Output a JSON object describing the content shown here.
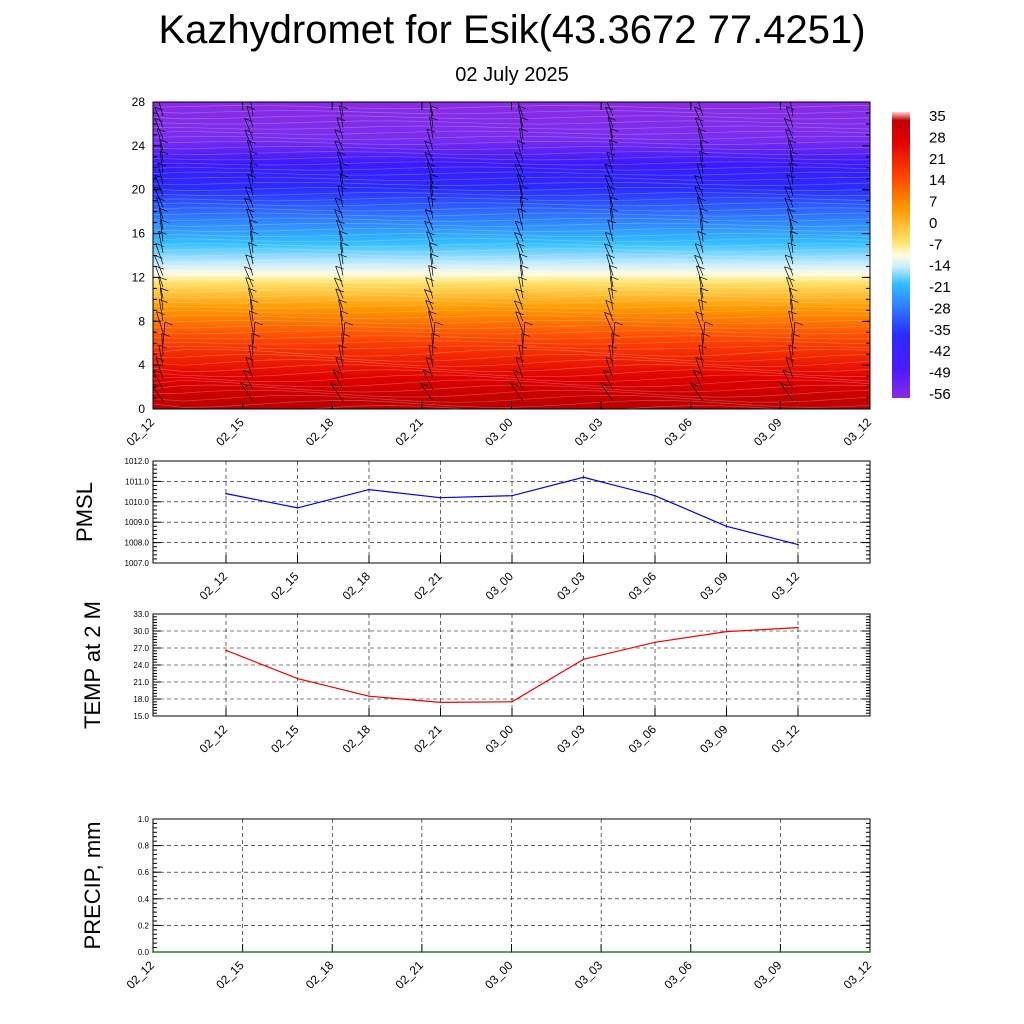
{
  "title": "Kazhydromet for Esik(43.3672 77.4251)",
  "subtitle": "02 July 2025",
  "colorbar": {
    "labels": [
      "35",
      "28",
      "21",
      "14",
      "7",
      "0",
      "-7",
      "-14",
      "-21",
      "-28",
      "-35",
      "-42",
      "-49",
      "-56"
    ]
  },
  "chart_data": [
    {
      "type": "heatmap",
      "name": "temperature-cross-section",
      "xlabel": "",
      "ylabel": "",
      "x_ticks": [
        "02_12",
        "02_15",
        "02_18",
        "02_21",
        "03_00",
        "03_03",
        "03_06",
        "03_09",
        "03_12"
      ],
      "y_ticks": [
        "0",
        "4",
        "8",
        "12",
        "16",
        "20",
        "24",
        "28"
      ],
      "ylim": [
        0,
        28
      ],
      "value_range": [
        -56,
        35
      ],
      "colors": {
        "hot": "#b30000",
        "warm": "#ff6a00",
        "yellow": "#fff27a",
        "cold": "#33b8ff",
        "deep": "#1a1aff",
        "violet": "#8a2be2"
      }
    },
    {
      "type": "line",
      "name": "PMSL",
      "ylabel": "PMSL",
      "x": [
        "02_12",
        "02_15",
        "02_18",
        "02_21",
        "03_00",
        "03_03",
        "03_06",
        "03_09",
        "03_12"
      ],
      "values": [
        1010.4,
        1009.7,
        1010.6,
        1010.2,
        1010.3,
        1011.2,
        1010.3,
        1008.8,
        1007.9
      ],
      "ylim": [
        1007.0,
        1012.0
      ],
      "y_ticks": [
        "1007.0",
        "1008.0",
        "1009.0",
        "1010.0",
        "1011.0",
        "1012.0"
      ],
      "color": "#0000ee"
    },
    {
      "type": "line",
      "name": "TEMP at 2 M",
      "ylabel": "TEMP at 2 M",
      "x": [
        "02_12",
        "02_15",
        "02_18",
        "02_21",
        "03_00",
        "03_03",
        "03_06",
        "03_09",
        "03_12"
      ],
      "values": [
        26.6,
        21.6,
        18.5,
        17.4,
        17.5,
        25.0,
        28.0,
        29.9,
        30.6
      ],
      "ylim": [
        15.0,
        33.0
      ],
      "y_ticks": [
        "15.0",
        "18.0",
        "21.0",
        "24.0",
        "27.0",
        "30.0",
        "33.0"
      ],
      "color": "#ee0000"
    },
    {
      "type": "line",
      "name": "PRECIP, mm",
      "ylabel": "PRECIP, mm",
      "x_ticks": [
        "02_12",
        "02_15",
        "02_18",
        "02_21",
        "03_00",
        "03_03",
        "03_06",
        "03_09",
        "03_12"
      ],
      "values": [
        0,
        0,
        0,
        0,
        0,
        0,
        0,
        0,
        0
      ],
      "ylim": [
        0.0,
        1.0
      ],
      "y_ticks": [
        "0.0",
        "0.2",
        "0.4",
        "0.6",
        "0.8",
        "1.0"
      ],
      "color": "#006400"
    }
  ]
}
